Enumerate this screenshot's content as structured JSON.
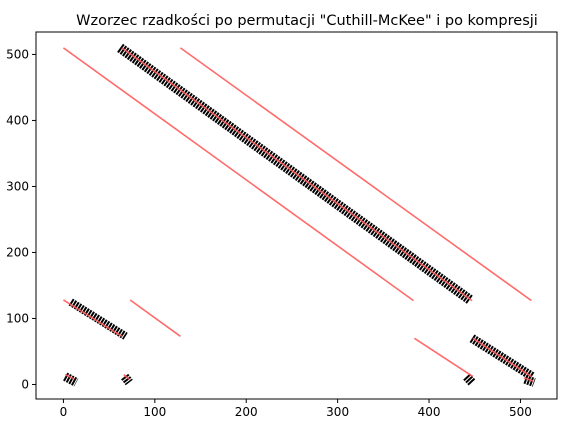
{
  "chart_data": {
    "type": "scatter",
    "title": "Wzorzec rzadkości po permutacji \"Cuthill-McKee\" i po kompresji",
    "xlabel": "",
    "ylabel": "",
    "xlim": [
      -30,
      540
    ],
    "ylim": [
      -22,
      534
    ],
    "xticks": [
      0,
      100,
      200,
      300,
      400,
      500
    ],
    "yticks": [
      0,
      100,
      200,
      300,
      400,
      500
    ],
    "grid": false,
    "legend": "none",
    "colors": {
      "original": "#000000",
      "compressed": "#ff5a5a",
      "axes": "#000000"
    },
    "series": [
      {
        "role": "original",
        "marker": "square",
        "segments": [
          {
            "x": [
              62,
              445
            ],
            "y": [
              510,
              128
            ],
            "width": 10
          },
          {
            "x": [
              8,
              68
            ],
            "y": [
              125,
              73
            ],
            "width": 8
          },
          {
            "x": [
              447,
              513
            ],
            "y": [
              70,
              12
            ],
            "width": 9
          },
          {
            "x": [
              2,
              14
            ],
            "y": [
              12,
              3
            ],
            "width": 9
          },
          {
            "x": [
              67,
              72
            ],
            "y": [
              12,
              3
            ],
            "width": 9
          },
          {
            "x": [
              441,
              447
            ],
            "y": [
              12,
              3
            ],
            "width": 9
          },
          {
            "x": [
              505,
              515
            ],
            "y": [
              8,
              3
            ],
            "width": 9
          }
        ]
      },
      {
        "role": "compressed",
        "marker": "line",
        "segments": [
          {
            "x": [
              0,
              383
            ],
            "y": [
              510,
              127
            ]
          },
          {
            "x": [
              128,
              512
            ],
            "y": [
              510,
              127
            ]
          },
          {
            "x": [
              64,
              447
            ],
            "y": [
              510,
              127
            ]
          },
          {
            "x": [
              0,
              64
            ],
            "y": [
              128,
              73
            ]
          },
          {
            "x": [
              73,
              128
            ],
            "y": [
              128,
              73
            ]
          },
          {
            "x": [
              384,
              448
            ],
            "y": [
              70,
              12
            ]
          },
          {
            "x": [
              448,
              512
            ],
            "y": [
              70,
              12
            ]
          },
          {
            "x": [
              2,
              12
            ],
            "y": [
              15,
              8
            ]
          },
          {
            "x": [
              66,
              72
            ],
            "y": [
              15,
              8
            ]
          },
          {
            "x": [
              504,
              514
            ],
            "y": [
              10,
              5
            ]
          }
        ]
      }
    ]
  }
}
